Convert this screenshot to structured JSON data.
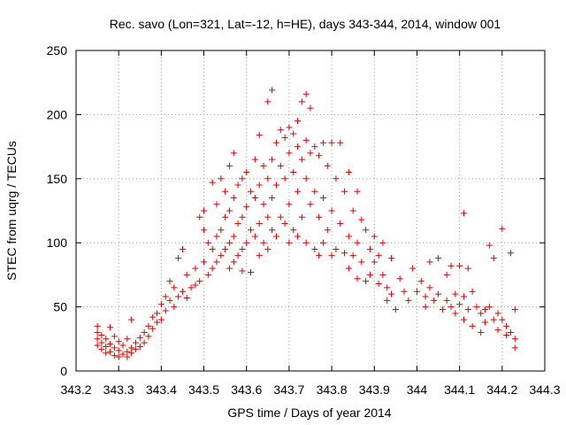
{
  "chart_data": {
    "type": "scatter",
    "title": "Rec. savo (Lon=321, Lat=-12, h=HE), days 343-344, 2014, window 001",
    "xlabel": "GPS time / Days of year 2014",
    "ylabel": "STEC from uqrg / TECUs",
    "xlim": [
      343.2,
      344.3
    ],
    "ylim": [
      0,
      250
    ],
    "xticks": [
      343.2,
      343.3,
      343.4,
      343.5,
      343.6,
      343.7,
      343.8,
      343.9,
      344,
      344.1,
      344.2,
      344.3
    ],
    "xtick_labels": [
      "343.2",
      "343.3",
      "343.4",
      "343.5",
      "343.6",
      "343.7",
      "343.8",
      "343.9",
      "344",
      "344.1",
      "344.2",
      "344.3"
    ],
    "yticks": [
      0,
      50,
      100,
      150,
      200,
      250
    ],
    "ytick_labels": [
      "0",
      "50",
      "100",
      "150",
      "200",
      "250"
    ],
    "grid": true,
    "marker": "+",
    "color": "#e00000",
    "series": [
      {
        "name": "",
        "points": [
          [
            343.25,
            35
          ],
          [
            343.25,
            30
          ],
          [
            343.25,
            25
          ],
          [
            343.25,
            20
          ],
          [
            343.26,
            28
          ],
          [
            343.26,
            22
          ],
          [
            343.26,
            17
          ],
          [
            343.27,
            25
          ],
          [
            343.27,
            19
          ],
          [
            343.27,
            14
          ],
          [
            343.28,
            34
          ],
          [
            343.28,
            21
          ],
          [
            343.28,
            15
          ],
          [
            343.29,
            27
          ],
          [
            343.29,
            18
          ],
          [
            343.29,
            12
          ],
          [
            343.3,
            23
          ],
          [
            343.3,
            16
          ],
          [
            343.3,
            11
          ],
          [
            343.31,
            20
          ],
          [
            343.31,
            13
          ],
          [
            343.32,
            25
          ],
          [
            343.32,
            15
          ],
          [
            343.32,
            11
          ],
          [
            343.33,
            40
          ],
          [
            343.33,
            18
          ],
          [
            343.33,
            14
          ],
          [
            343.34,
            22
          ],
          [
            343.34,
            17
          ],
          [
            343.35,
            26
          ],
          [
            343.35,
            19
          ],
          [
            343.36,
            30
          ],
          [
            343.36,
            22
          ],
          [
            343.37,
            35
          ],
          [
            343.37,
            27
          ],
          [
            343.38,
            42
          ],
          [
            343.38,
            33
          ],
          [
            343.39,
            45
          ],
          [
            343.39,
            38
          ],
          [
            343.4,
            52
          ],
          [
            343.4,
            40
          ],
          [
            343.41,
            58
          ],
          [
            343.41,
            47
          ],
          [
            343.42,
            70
          ],
          [
            343.42,
            55
          ],
          [
            343.43,
            65
          ],
          [
            343.43,
            50
          ],
          [
            343.44,
            88
          ],
          [
            343.44,
            58
          ],
          [
            343.45,
            95
          ],
          [
            343.45,
            62
          ],
          [
            343.46,
            75
          ],
          [
            343.46,
            57
          ],
          [
            343.47,
            65
          ],
          [
            343.48,
            80
          ],
          [
            343.48,
            67
          ],
          [
            343.49,
            120
          ],
          [
            343.49,
            70
          ],
          [
            343.5,
            125
          ],
          [
            343.5,
            110
          ],
          [
            343.5,
            85
          ],
          [
            343.51,
            100
          ],
          [
            343.51,
            75
          ],
          [
            343.52,
            147
          ],
          [
            343.52,
            95
          ],
          [
            343.52,
            80
          ],
          [
            343.53,
            130
          ],
          [
            343.53,
            105
          ],
          [
            343.53,
            85
          ],
          [
            343.54,
            150
          ],
          [
            343.54,
            110
          ],
          [
            343.54,
            90
          ],
          [
            343.55,
            140
          ],
          [
            343.55,
            120
          ],
          [
            343.55,
            95
          ],
          [
            343.56,
            160
          ],
          [
            343.56,
            125
          ],
          [
            343.56,
            100
          ],
          [
            343.56,
            80
          ],
          [
            343.57,
            170
          ],
          [
            343.57,
            135
          ],
          [
            343.57,
            105
          ],
          [
            343.57,
            85
          ],
          [
            343.58,
            145
          ],
          [
            343.58,
            115
          ],
          [
            343.58,
            90
          ],
          [
            343.59,
            150
          ],
          [
            343.59,
            120
          ],
          [
            343.59,
            95
          ],
          [
            343.59,
            78
          ],
          [
            343.6,
            155
          ],
          [
            343.6,
            128
          ],
          [
            343.6,
            100
          ],
          [
            343.61,
            140
          ],
          [
            343.61,
            110
          ],
          [
            343.61,
            77
          ],
          [
            343.62,
            165
          ],
          [
            343.62,
            135
          ],
          [
            343.62,
            105
          ],
          [
            343.63,
            184
          ],
          [
            343.63,
            145
          ],
          [
            343.63,
            115
          ],
          [
            343.63,
            90
          ],
          [
            343.64,
            160
          ],
          [
            343.64,
            130
          ],
          [
            343.64,
            100
          ],
          [
            343.65,
            210
          ],
          [
            343.65,
            150
          ],
          [
            343.65,
            120
          ],
          [
            343.65,
            95
          ],
          [
            343.66,
            219
          ],
          [
            343.66,
            165
          ],
          [
            343.66,
            135
          ],
          [
            343.66,
            110
          ],
          [
            343.67,
            178
          ],
          [
            343.67,
            145
          ],
          [
            343.67,
            105
          ],
          [
            343.68,
            188
          ],
          [
            343.68,
            160
          ],
          [
            343.68,
            120
          ],
          [
            343.69,
            182
          ],
          [
            343.69,
            150
          ],
          [
            343.69,
            115
          ],
          [
            343.7,
            190
          ],
          [
            343.7,
            170
          ],
          [
            343.7,
            130
          ],
          [
            343.7,
            100
          ],
          [
            343.71,
            185
          ],
          [
            343.71,
            155
          ],
          [
            343.71,
            110
          ],
          [
            343.72,
            195
          ],
          [
            343.72,
            175
          ],
          [
            343.72,
            140
          ],
          [
            343.72,
            105
          ],
          [
            343.73,
            210
          ],
          [
            343.73,
            165
          ],
          [
            343.73,
            120
          ],
          [
            343.74,
            216
          ],
          [
            343.74,
            180
          ],
          [
            343.74,
            150
          ],
          [
            343.74,
            100
          ],
          [
            343.75,
            205
          ],
          [
            343.75,
            170
          ],
          [
            343.75,
            130
          ],
          [
            343.76,
            175
          ],
          [
            343.76,
            140
          ],
          [
            343.76,
            95
          ],
          [
            343.77,
            168
          ],
          [
            343.77,
            120
          ],
          [
            343.77,
            90
          ],
          [
            343.78,
            178
          ],
          [
            343.78,
            135
          ],
          [
            343.78,
            100
          ],
          [
            343.79,
            160
          ],
          [
            343.79,
            110
          ],
          [
            343.8,
            178
          ],
          [
            343.8,
            125
          ],
          [
            343.8,
            90
          ],
          [
            343.81,
            150
          ],
          [
            343.81,
            95
          ],
          [
            343.82,
            178
          ],
          [
            343.82,
            115
          ],
          [
            343.83,
            140
          ],
          [
            343.83,
            92
          ],
          [
            343.84,
            155
          ],
          [
            343.84,
            105
          ],
          [
            343.84,
            80
          ],
          [
            343.85,
            125
          ],
          [
            343.85,
            90
          ],
          [
            343.86,
            140
          ],
          [
            343.86,
            100
          ],
          [
            343.86,
            72
          ],
          [
            343.87,
            118
          ],
          [
            343.87,
            85
          ],
          [
            343.88,
            110
          ],
          [
            343.88,
            70
          ],
          [
            343.89,
            95
          ],
          [
            343.89,
            75
          ],
          [
            343.9,
            105
          ],
          [
            343.9,
            85
          ],
          [
            343.91,
            90
          ],
          [
            343.91,
            68
          ],
          [
            343.92,
            100
          ],
          [
            343.92,
            75
          ],
          [
            343.93,
            65
          ],
          [
            343.93,
            55
          ],
          [
            343.94,
            88
          ],
          [
            343.94,
            60
          ],
          [
            343.95,
            48
          ],
          [
            343.96,
            72
          ],
          [
            343.97,
            62
          ],
          [
            343.98,
            55
          ],
          [
            343.99,
            80
          ],
          [
            344.0,
            62
          ],
          [
            344.01,
            70
          ],
          [
            344.02,
            58
          ],
          [
            344.02,
            50
          ],
          [
            344.03,
            85
          ],
          [
            344.03,
            65
          ],
          [
            344.04,
            55
          ],
          [
            344.05,
            88
          ],
          [
            344.05,
            60
          ],
          [
            344.06,
            48
          ],
          [
            344.07,
            75
          ],
          [
            344.07,
            55
          ],
          [
            344.08,
            82
          ],
          [
            344.08,
            50
          ],
          [
            344.09,
            60
          ],
          [
            344.09,
            45
          ],
          [
            344.1,
            82
          ],
          [
            344.1,
            52
          ],
          [
            344.11,
            123
          ],
          [
            344.11,
            58
          ],
          [
            344.11,
            40
          ],
          [
            344.12,
            80
          ],
          [
            344.12,
            48
          ],
          [
            344.13,
            62
          ],
          [
            344.13,
            35
          ],
          [
            344.14,
            50
          ],
          [
            344.15,
            45
          ],
          [
            344.15,
            30
          ],
          [
            344.16,
            48
          ],
          [
            344.16,
            38
          ],
          [
            344.17,
            98
          ],
          [
            344.17,
            50
          ],
          [
            344.18,
            40
          ],
          [
            344.18,
            88
          ],
          [
            344.19,
            45
          ],
          [
            344.19,
            32
          ],
          [
            344.2,
            111
          ],
          [
            344.2,
            40
          ],
          [
            344.21,
            35
          ],
          [
            344.21,
            28
          ],
          [
            344.22,
            92
          ],
          [
            344.22,
            30
          ],
          [
            344.23,
            48
          ],
          [
            344.23,
            25
          ],
          [
            344.23,
            18
          ]
        ]
      }
    ]
  }
}
